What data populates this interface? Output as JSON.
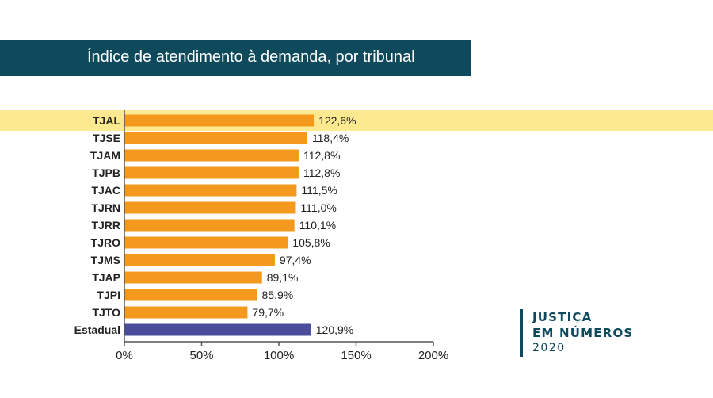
{
  "header": {
    "title": "Índice de atendimento à demanda, por tribunal"
  },
  "logo": {
    "line1": "JUSTIÇA",
    "line2": "EM NÚMEROS",
    "year": "2020"
  },
  "colors": {
    "bar": "#f39a1e",
    "bar_total": "#4a4d9c",
    "highlight": "#fde98f",
    "banner": "#0e4a5c",
    "axis": "#555555",
    "text": "#222222"
  },
  "chart_data": {
    "type": "bar",
    "orientation": "horizontal",
    "categories": [
      "TJAL",
      "TJSE",
      "TJAM",
      "TJPB",
      "TJAC",
      "TJRN",
      "TJRR",
      "TJRO",
      "TJMS",
      "TJAP",
      "TJPI",
      "TJTO",
      "Estadual"
    ],
    "values": [
      122.6,
      118.4,
      112.8,
      112.8,
      111.5,
      111.0,
      110.1,
      105.8,
      97.4,
      89.1,
      85.9,
      79.7,
      120.9
    ],
    "value_labels": [
      "122,6%",
      "118,4%",
      "112,8%",
      "112,8%",
      "111,5%",
      "111,0%",
      "110,1%",
      "105,8%",
      "97,4%",
      "89,1%",
      "85,9%",
      "79,7%",
      "120,9%"
    ],
    "highlighted_category": "TJAL",
    "total_category": "Estadual",
    "xlim": [
      0,
      200
    ],
    "xticks": [
      0,
      50,
      100,
      150,
      200
    ],
    "xtick_labels": [
      "0%",
      "50%",
      "100%",
      "150%",
      "200%"
    ],
    "grid": false
  }
}
